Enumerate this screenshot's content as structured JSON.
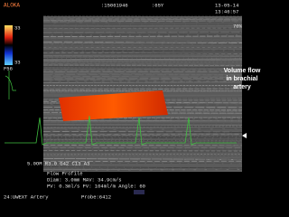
{
  "header": {
    "brand": "ALOKA",
    "patient_id": ":15061946",
    "age": ":65Y",
    "date": "13-05-14",
    "time": "13:46:57",
    "gain": "70%"
  },
  "color_scale": {
    "top": "33",
    "bottom": "33",
    "label": "F56"
  },
  "annotation": [
    "Volume flow",
    "in brachial",
    "artery"
  ],
  "settings": "5.0OM R3.0 G42 C13 A3",
  "flow_profile": {
    "title": "Flow Profile",
    "line1": "Diam:  3.0mm   MAV: 34.9cm/s",
    "line2": "PV:  0.3ml/s   FV:  104ml/m   Angle: 60"
  },
  "footer": {
    "preset": "24:UWEXT Artery",
    "probe": "Probe:6412"
  }
}
